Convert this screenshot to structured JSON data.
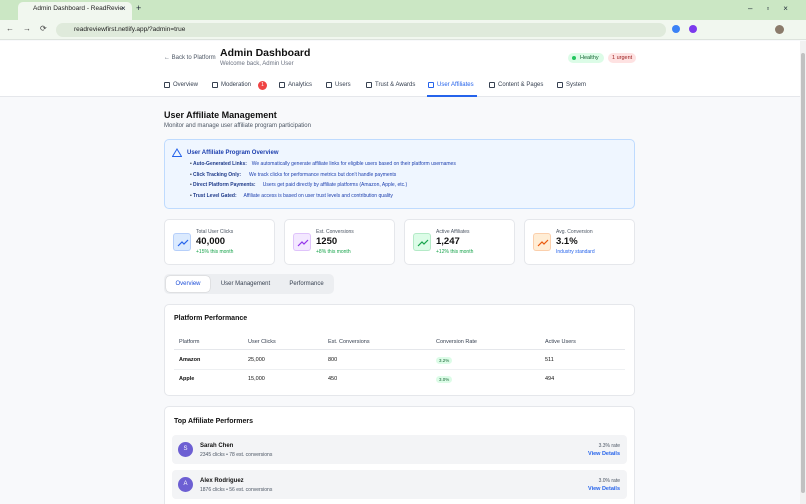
{
  "browser": {
    "tab_title": "Admin Dashboard - ReadRevie",
    "url": "readreviewfirst.netlify.app/?admin=true"
  },
  "header": {
    "back": "← Back to Platform",
    "title": "Admin Dashboard",
    "subtitle": "Welcome back, Admin User",
    "status": "Healthy",
    "urgent": "1 urgent"
  },
  "nav": [
    {
      "label": "Overview"
    },
    {
      "label": "Moderation",
      "badge": "1"
    },
    {
      "label": "Analytics"
    },
    {
      "label": "Users"
    },
    {
      "label": "Trust & Awards"
    },
    {
      "label": "User Affiliates",
      "active": true
    },
    {
      "label": "Content & Pages"
    },
    {
      "label": "System"
    }
  ],
  "section": {
    "title": "User Affiliate Management",
    "subtitle": "Monitor and manage user affiliate program participation"
  },
  "info": {
    "title": "User Affiliate Program Overview",
    "items": [
      {
        "label": "Auto-Generated Links:",
        "text": "We automatically generate affiliate links for eligible users based on their platform usernames"
      },
      {
        "label": "Click Tracking Only:",
        "text": "We track clicks for performance metrics but don't handle payments"
      },
      {
        "label": "Direct Platform Payments:",
        "text": "Users get paid directly by affiliate platforms (Amazon, Apple, etc.)"
      },
      {
        "label": "Trust Level Gated:",
        "text": "Affiliate access is based on user trust levels and contribution quality"
      }
    ]
  },
  "stats": [
    {
      "label": "Total User Clicks",
      "value": "40,000",
      "note": "+15% this month"
    },
    {
      "label": "Est. Conversions",
      "value": "1250",
      "note": "+8% this month"
    },
    {
      "label": "Active Affiliates",
      "value": "1,247",
      "note": "+12% this month"
    },
    {
      "label": "Avg. Conversion",
      "value": "3.1%",
      "note": "Industry standard"
    }
  ],
  "tabs": [
    "Overview",
    "User Management",
    "Performance"
  ],
  "platform": {
    "title": "Platform Performance",
    "columns": [
      "Platform",
      "User Clicks",
      "Est. Conversions",
      "Conversion Rate",
      "Active Users"
    ],
    "rows": [
      [
        "Amazon",
        "25,000",
        "800",
        "3.2%",
        "511"
      ],
      [
        "Apple",
        "15,000",
        "450",
        "3.0%",
        "494"
      ]
    ]
  },
  "top": {
    "title": "Top Affiliate Performers",
    "items": [
      {
        "initial": "S",
        "name": "Sarah Chen",
        "stats": "2345 clicks • 78 est. conversions",
        "rate": "3.3% rate",
        "action": "View Details"
      },
      {
        "initial": "A",
        "name": "Alex Rodriguez",
        "stats": "1876 clicks • 56 est. conversions",
        "rate": "3.0% rate",
        "action": "View Details"
      }
    ]
  }
}
